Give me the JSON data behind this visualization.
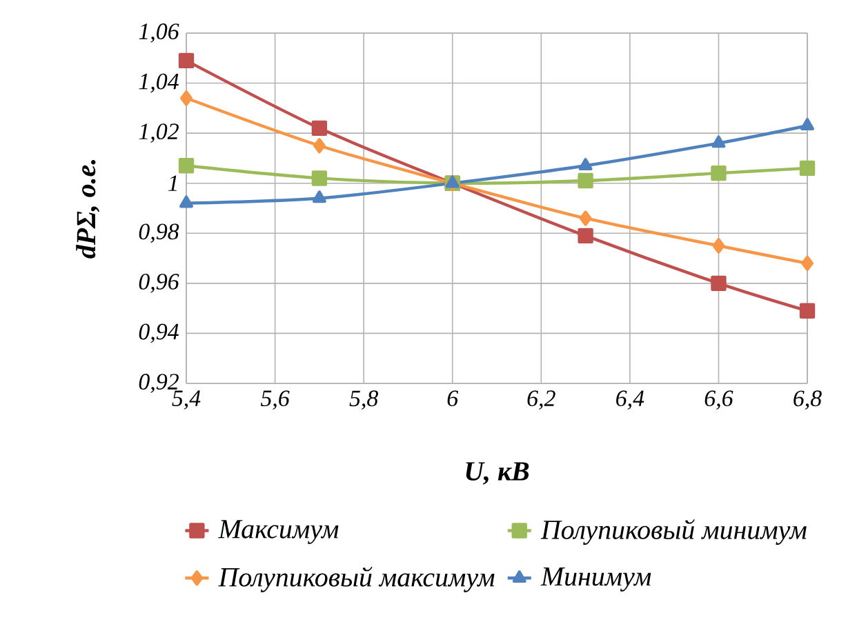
{
  "chart_data": {
    "type": "line",
    "xlabel": "**U, кВ**",
    "ylabel": "**dPΣ, о.е.**",
    "x": [
      5.4,
      5.7,
      6.0,
      6.3,
      6.6,
      6.8
    ],
    "series": [
      {
        "name": "Максимум",
        "color": "#c0504d",
        "marker": "square",
        "values": [
          1.049,
          1.022,
          1.0,
          0.979,
          0.96,
          0.949
        ]
      },
      {
        "name": "Полупиковый минимум",
        "color": "#9bbb59",
        "marker": "square",
        "values": [
          1.007,
          1.002,
          1.0,
          1.001,
          1.004,
          1.006
        ]
      },
      {
        "name": "Полупиковый максимум",
        "color": "#f79646",
        "marker": "diamond",
        "values": [
          1.034,
          1.015,
          1.0,
          0.986,
          0.975,
          0.968
        ]
      },
      {
        "name": "Минимум",
        "color": "#4f81bd",
        "marker": "triangle",
        "values": [
          0.992,
          0.994,
          1.0,
          1.007,
          1.016,
          1.023
        ]
      }
    ],
    "xlim": [
      5.4,
      6.8
    ],
    "xticks": [
      {
        "value": 5.4,
        "label": "5,4"
      },
      {
        "value": 5.6,
        "label": "5,6"
      },
      {
        "value": 5.8,
        "label": "5,8"
      },
      6,
      {
        "value": 6.2,
        "label": "6,2"
      },
      {
        "value": 6.4,
        "label": "6,4"
      },
      {
        "value": 6.6,
        "label": "6,6"
      },
      {
        "value": 6.8,
        "label": "6,8"
      }
    ],
    "ylim": [
      0.92,
      1.06
    ],
    "yticks": [
      {
        "value": 0.92,
        "label": "0,92"
      },
      {
        "value": 0.94,
        "label": "0,94"
      },
      {
        "value": 0.96,
        "label": "0,96"
      },
      {
        "value": 0.98,
        "label": "0,98"
      },
      1,
      {
        "value": 1.02,
        "label": "1,02"
      },
      {
        "value": 1.04,
        "label": "1,04"
      },
      {
        "value": 1.06,
        "label": "1,06"
      }
    ],
    "grid": true,
    "legend": "bottom",
    "line_style": "solid"
  }
}
